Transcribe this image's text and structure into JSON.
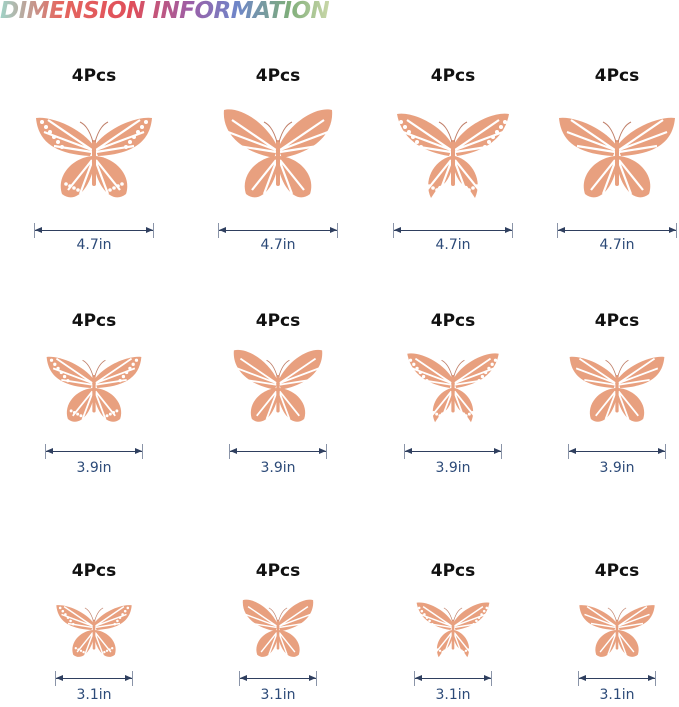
{
  "title": "DIMENSION INFORMATION",
  "colors": {
    "butterfly": "#e8a07f",
    "dimension_line": "#2f3f5f",
    "size_text": "#2c4a78"
  },
  "rows": [
    {
      "size": "4.7in",
      "items": [
        {
          "qty": "4Pcs",
          "style": "monarch-dots"
        },
        {
          "qty": "4Pcs",
          "style": "lace"
        },
        {
          "qty": "4Pcs",
          "style": "swallowtail-dots"
        },
        {
          "qty": "4Pcs",
          "style": "filigree"
        }
      ]
    },
    {
      "size": "3.9in",
      "items": [
        {
          "qty": "4Pcs",
          "style": "monarch-dots"
        },
        {
          "qty": "4Pcs",
          "style": "lace"
        },
        {
          "qty": "4Pcs",
          "style": "swallowtail-dots"
        },
        {
          "qty": "4Pcs",
          "style": "filigree"
        }
      ]
    },
    {
      "size": "3.1in",
      "items": [
        {
          "qty": "4Pcs",
          "style": "monarch-dots"
        },
        {
          "qty": "4Pcs",
          "style": "lace"
        },
        {
          "qty": "4Pcs",
          "style": "swallowtail-dots"
        },
        {
          "qty": "4Pcs",
          "style": "filigree"
        }
      ]
    }
  ]
}
